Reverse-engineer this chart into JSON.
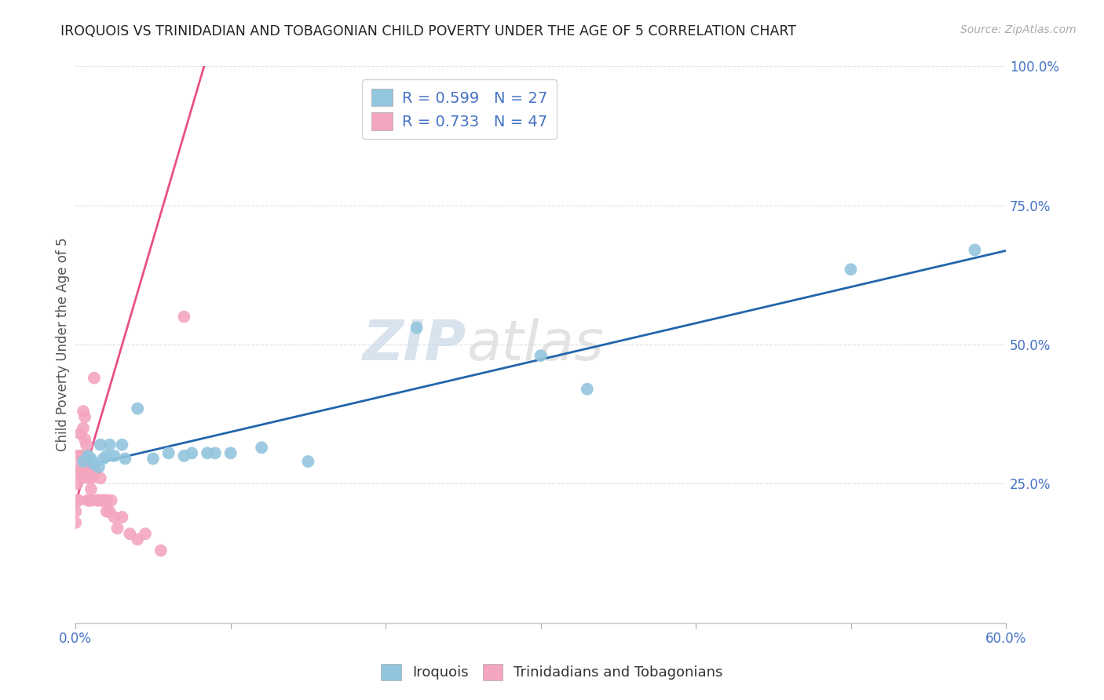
{
  "title": "IROQUOIS VS TRINIDADIAN AND TOBAGONIAN CHILD POVERTY UNDER THE AGE OF 5 CORRELATION CHART",
  "source": "Source: ZipAtlas.com",
  "ylabel": "Child Poverty Under the Age of 5",
  "xlim": [
    0.0,
    0.6
  ],
  "ylim": [
    0.0,
    1.0
  ],
  "xticks": [
    0.0,
    0.1,
    0.2,
    0.3,
    0.4,
    0.5,
    0.6
  ],
  "xticklabels": [
    "0.0%",
    "",
    "",
    "",
    "",
    "",
    "60.0%"
  ],
  "yticks": [
    0.0,
    0.25,
    0.5,
    0.75,
    1.0
  ],
  "yticklabels": [
    "",
    "25.0%",
    "50.0%",
    "75.0%",
    "100.0%"
  ],
  "iroquois_color": "#92c5de",
  "trinidadian_color": "#f4a6be",
  "iroquois_line_color": "#2166ac",
  "trinidadian_line_color": "#e8508a",
  "iroquois_R": 0.599,
  "iroquois_N": 27,
  "trinidadian_R": 0.733,
  "trinidadian_N": 47,
  "watermark_zip": "ZIP",
  "watermark_atlas": "atlas",
  "legend_label_iroquois": "Iroquois",
  "legend_label_trinidadian": "Trinidadians and Tobagonians",
  "iroquois_x": [
    0.005,
    0.008,
    0.01,
    0.012,
    0.015,
    0.016,
    0.018,
    0.02,
    0.022,
    0.025,
    0.03,
    0.032,
    0.04,
    0.05,
    0.06,
    0.07,
    0.075,
    0.085,
    0.09,
    0.1,
    0.12,
    0.15,
    0.22,
    0.3,
    0.33,
    0.5,
    0.58
  ],
  "iroquois_y": [
    0.29,
    0.3,
    0.295,
    0.285,
    0.28,
    0.32,
    0.295,
    0.3,
    0.32,
    0.3,
    0.32,
    0.295,
    0.385,
    0.295,
    0.305,
    0.3,
    0.305,
    0.305,
    0.305,
    0.305,
    0.315,
    0.29,
    0.53,
    0.48,
    0.42,
    0.635,
    0.67
  ],
  "trinidadian_x": [
    0.0,
    0.0,
    0.0,
    0.001,
    0.001,
    0.002,
    0.002,
    0.003,
    0.003,
    0.003,
    0.004,
    0.004,
    0.005,
    0.005,
    0.006,
    0.006,
    0.006,
    0.007,
    0.007,
    0.008,
    0.008,
    0.008,
    0.009,
    0.009,
    0.01,
    0.01,
    0.01,
    0.012,
    0.013,
    0.014,
    0.015,
    0.016,
    0.017,
    0.018,
    0.019,
    0.02,
    0.02,
    0.022,
    0.023,
    0.025,
    0.027,
    0.03,
    0.035,
    0.04,
    0.045,
    0.055,
    0.07
  ],
  "trinidadian_y": [
    0.18,
    0.2,
    0.22,
    0.25,
    0.3,
    0.22,
    0.27,
    0.3,
    0.34,
    0.28,
    0.26,
    0.3,
    0.35,
    0.38,
    0.28,
    0.33,
    0.37,
    0.32,
    0.27,
    0.28,
    0.3,
    0.22,
    0.22,
    0.26,
    0.22,
    0.24,
    0.26,
    0.44,
    0.27,
    0.22,
    0.22,
    0.26,
    0.22,
    0.22,
    0.22,
    0.2,
    0.22,
    0.2,
    0.22,
    0.19,
    0.17,
    0.19,
    0.16,
    0.15,
    0.16,
    0.13,
    0.55
  ],
  "trinidadian_line_x": [
    0.0,
    0.085
  ],
  "trinidadian_line_y": [
    0.215,
    1.02
  ],
  "background_color": "#ffffff",
  "grid_color": "#e0e0e0"
}
